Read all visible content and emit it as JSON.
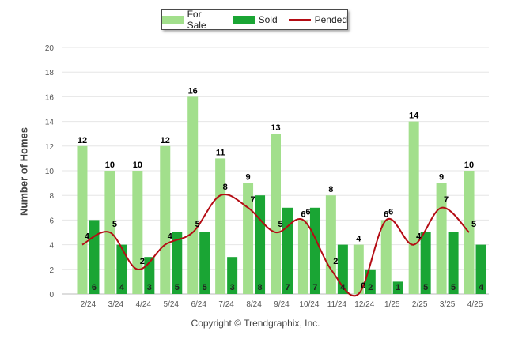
{
  "legend": {
    "for_sale": "For Sale",
    "sold": "Sold",
    "pended": "Pended"
  },
  "copyright": "Copyright © Trendgraphix, Inc.",
  "colors": {
    "for_sale": "#a2df8c",
    "sold": "#1aa534",
    "pended": "#b40c14",
    "grid": "#e6e6e6",
    "axis_text": "#555555"
  },
  "chart_data": {
    "type": "bar",
    "ylabel": "Number of Homes",
    "xlabel": "",
    "ylim": [
      0,
      20
    ],
    "yticks": [
      0,
      2,
      4,
      6,
      8,
      10,
      12,
      14,
      16,
      18,
      20
    ],
    "grid": true,
    "legend_position": "top-center",
    "categories": [
      "2/24",
      "3/24",
      "4/24",
      "5/24",
      "6/24",
      "7/24",
      "8/24",
      "9/24",
      "10/24",
      "11/24",
      "12/24",
      "1/25",
      "2/25",
      "3/25",
      "4/25"
    ],
    "series": [
      {
        "name": "For Sale",
        "kind": "bar",
        "values": [
          12,
          10,
          10,
          12,
          16,
          11,
          9,
          13,
          6,
          8,
          4,
          6,
          14,
          9,
          10
        ]
      },
      {
        "name": "Sold",
        "kind": "bar",
        "values": [
          6,
          4,
          3,
          5,
          5,
          3,
          8,
          7,
          7,
          4,
          2,
          1,
          5,
          5,
          4
        ]
      },
      {
        "name": "Pended",
        "kind": "line",
        "values": [
          4,
          5,
          2,
          4,
          5,
          8,
          7,
          5,
          6,
          2,
          0,
          6,
          4,
          7,
          5
        ]
      }
    ]
  }
}
